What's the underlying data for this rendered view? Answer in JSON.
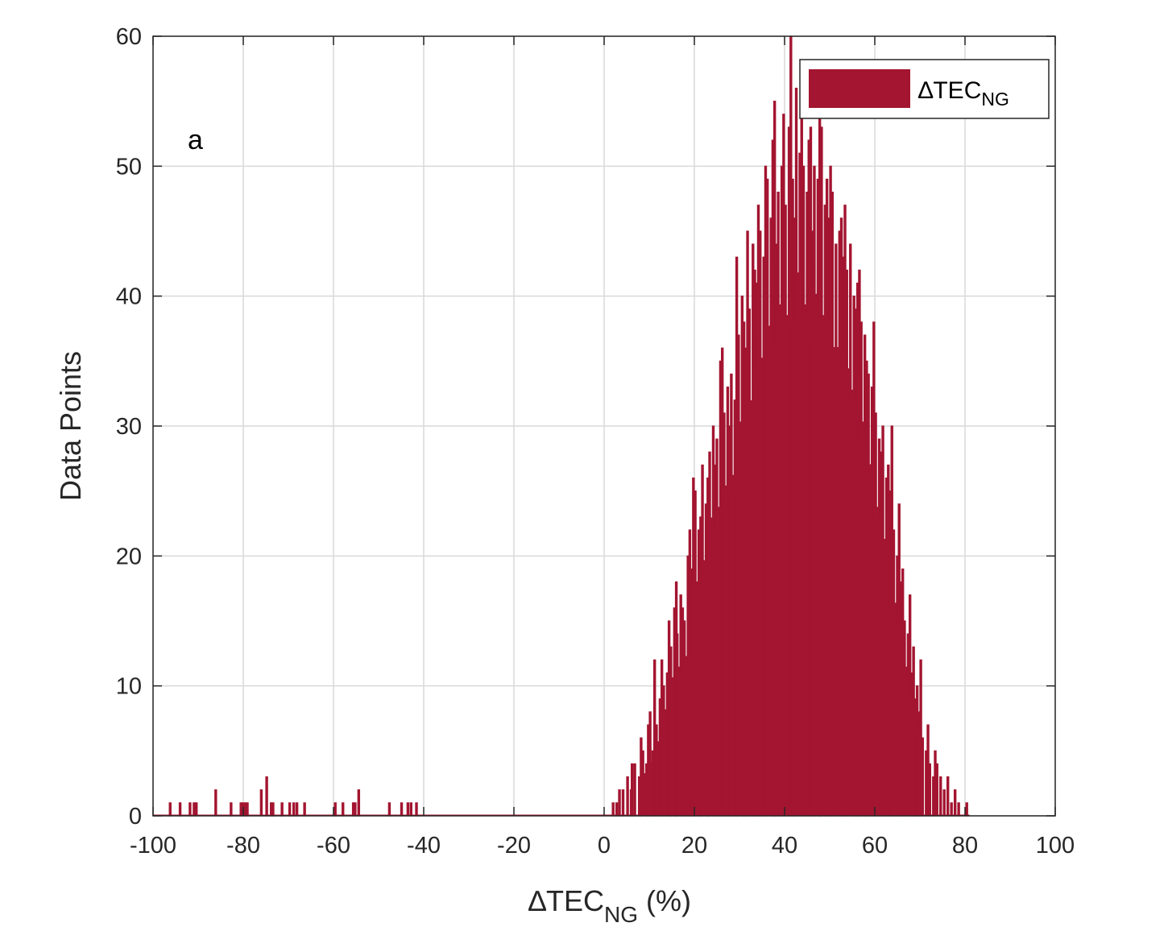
{
  "chart_data": {
    "type": "bar",
    "panel_label": "a",
    "xlabel": {
      "main": "∆TEC",
      "sub": "NG",
      "suffix": " (%)"
    },
    "ylabel": "Data Points",
    "xlim": [
      -100,
      100
    ],
    "ylim": [
      0,
      60
    ],
    "xticks": [
      "-100",
      "-80",
      "-60",
      "-40",
      "-20",
      "0",
      "20",
      "40",
      "60",
      "80",
      "100"
    ],
    "yticks": [
      "0",
      "10",
      "20",
      "30",
      "40",
      "50",
      "60"
    ],
    "grid": true,
    "legend_position": "top-right",
    "bin_width": 0.2,
    "series": [
      {
        "name": {
          "main": "∆TEC",
          "sub": "NG"
        },
        "color": "#a31530",
        "points": [
          [
            -96.4,
            1
          ],
          [
            -94.2,
            1
          ],
          [
            -92.0,
            1
          ],
          [
            -91.1,
            1
          ],
          [
            -90.6,
            1
          ],
          [
            -86.3,
            2
          ],
          [
            -82.9,
            1
          ],
          [
            -80.7,
            1
          ],
          [
            -80.3,
            1
          ],
          [
            -79.8,
            1
          ],
          [
            -79.3,
            1
          ],
          [
            -76.2,
            2
          ],
          [
            -75.0,
            3
          ],
          [
            -74.0,
            1
          ],
          [
            -73.6,
            1
          ],
          [
            -71.6,
            1
          ],
          [
            -69.9,
            1
          ],
          [
            -69.0,
            1
          ],
          [
            -68.3,
            1
          ],
          [
            -66.6,
            1
          ],
          [
            -59.8,
            1
          ],
          [
            -58.1,
            1
          ],
          [
            -55.8,
            1
          ],
          [
            -55.4,
            1
          ],
          [
            -54.6,
            2
          ],
          [
            -47.8,
            1
          ],
          [
            -45.1,
            1
          ],
          [
            -43.7,
            1
          ],
          [
            -43.0,
            1
          ],
          [
            -41.8,
            1
          ],
          [
            1.8,
            1
          ],
          [
            2.6,
            1
          ],
          [
            3.2,
            2
          ],
          [
            4.0,
            2
          ],
          [
            5.0,
            3
          ],
          [
            5.8,
            2
          ],
          [
            6.6,
            4
          ],
          [
            7.6,
            3
          ],
          [
            8.4,
            5
          ],
          [
            9.2,
            4
          ],
          [
            10.0,
            8
          ],
          [
            10.6,
            5
          ],
          [
            11.4,
            7
          ],
          [
            12.2,
            9
          ],
          [
            13.0,
            10
          ],
          [
            13.8,
            11
          ],
          [
            14.6,
            13
          ],
          [
            15.4,
            16
          ],
          [
            16.0,
            14
          ],
          [
            16.8,
            17
          ],
          [
            17.6,
            15
          ],
          [
            18.4,
            20
          ],
          [
            19.2,
            19
          ],
          [
            20.0,
            25
          ],
          [
            20.8,
            22
          ],
          [
            21.6,
            27
          ],
          [
            22.4,
            24
          ],
          [
            23.2,
            28
          ],
          [
            24.0,
            30
          ],
          [
            24.8,
            29
          ],
          [
            25.6,
            35
          ],
          [
            26.4,
            31
          ],
          [
            27.2,
            33
          ],
          [
            28.0,
            34
          ],
          [
            28.8,
            32
          ],
          [
            29.6,
            37
          ],
          [
            30.4,
            40
          ],
          [
            31.2,
            36
          ],
          [
            32.0,
            39
          ],
          [
            32.8,
            44
          ],
          [
            33.6,
            41
          ],
          [
            34.4,
            45
          ],
          [
            35.2,
            43
          ],
          [
            36.0,
            49
          ],
          [
            36.8,
            46
          ],
          [
            37.6,
            55
          ],
          [
            38.4,
            48
          ],
          [
            39.2,
            50
          ],
          [
            40.0,
            47
          ],
          [
            40.8,
            53
          ],
          [
            41.6,
            49
          ],
          [
            42.4,
            56
          ],
          [
            43.2,
            51
          ],
          [
            44.0,
            50
          ],
          [
            44.8,
            48
          ],
          [
            45.6,
            53
          ],
          [
            46.4,
            50
          ],
          [
            47.2,
            49
          ],
          [
            48.0,
            53
          ],
          [
            48.8,
            47
          ],
          [
            49.6,
            46
          ],
          [
            50.4,
            48
          ],
          [
            51.2,
            44
          ],
          [
            52.0,
            45
          ],
          [
            52.8,
            43
          ],
          [
            53.6,
            42
          ],
          [
            54.4,
            44
          ],
          [
            55.2,
            40
          ],
          [
            56.0,
            41
          ],
          [
            56.8,
            38
          ],
          [
            57.6,
            37
          ],
          [
            58.4,
            34
          ],
          [
            59.2,
            33
          ],
          [
            60.0,
            31
          ],
          [
            60.8,
            29
          ],
          [
            61.6,
            30
          ],
          [
            62.4,
            26
          ],
          [
            63.2,
            25
          ],
          [
            64.0,
            22
          ],
          [
            64.8,
            20
          ],
          [
            65.6,
            18
          ],
          [
            66.4,
            15
          ],
          [
            67.2,
            14
          ],
          [
            68.0,
            11
          ],
          [
            68.8,
            9
          ],
          [
            69.6,
            8
          ],
          [
            70.4,
            6
          ],
          [
            71.2,
            5
          ],
          [
            72.0,
            4
          ],
          [
            72.8,
            3
          ],
          [
            73.6,
            4
          ],
          [
            74.4,
            3
          ],
          [
            75.2,
            2
          ],
          [
            76.0,
            3
          ],
          [
            76.8,
            1
          ],
          [
            77.6,
            2
          ],
          [
            78.4,
            1
          ],
          [
            80.2,
            1
          ],
          [
            11.0,
            12
          ],
          [
            19.6,
            26
          ],
          [
            26.0,
            36
          ],
          [
            29.2,
            43
          ],
          [
            31.6,
            45
          ],
          [
            34.0,
            47
          ],
          [
            35.6,
            50
          ],
          [
            37.2,
            52
          ],
          [
            39.6,
            54
          ],
          [
            41.2,
            60
          ],
          [
            43.6,
            55
          ],
          [
            45.2,
            52
          ],
          [
            47.6,
            56
          ],
          [
            50.0,
            50
          ],
          [
            53.2,
            47
          ],
          [
            56.4,
            42
          ],
          [
            59.6,
            38
          ],
          [
            63.6,
            30
          ],
          [
            65.2,
            24
          ],
          [
            67.6,
            17
          ],
          [
            70.0,
            12
          ],
          [
            6.0,
            4
          ],
          [
            8.0,
            6
          ],
          [
            9.6,
            7
          ],
          [
            12.6,
            12
          ],
          [
            14.2,
            15
          ],
          [
            15.8,
            18
          ],
          [
            17.2,
            16
          ],
          [
            18.8,
            22
          ],
          [
            21.2,
            23
          ],
          [
            22.8,
            26
          ],
          [
            24.4,
            27
          ],
          [
            27.6,
            30
          ],
          [
            30.8,
            38
          ],
          [
            33.2,
            42
          ],
          [
            38.0,
            44
          ],
          [
            42.0,
            46
          ],
          [
            46.0,
            45
          ],
          [
            49.2,
            49
          ],
          [
            52.4,
            46
          ],
          [
            55.6,
            39
          ],
          [
            58.0,
            35
          ],
          [
            61.2,
            28
          ],
          [
            62.8,
            27
          ],
          [
            66.0,
            19
          ],
          [
            68.4,
            13
          ],
          [
            69.2,
            10
          ],
          [
            71.6,
            7
          ],
          [
            73.2,
            5
          ]
        ]
      }
    ]
  }
}
